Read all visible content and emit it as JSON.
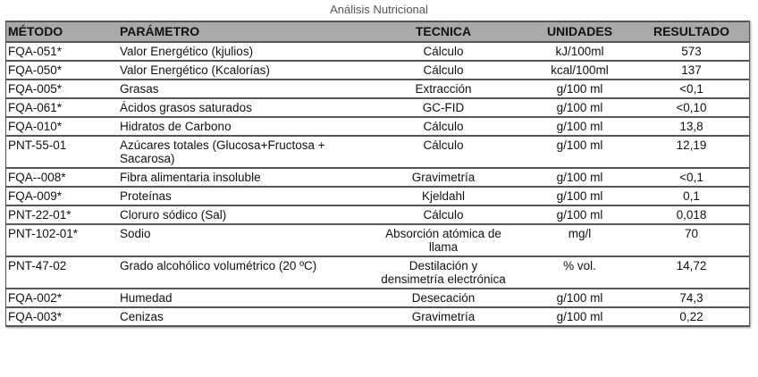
{
  "title": "Análisis Nutricional",
  "headers": [
    "MÉTODO",
    "PARÁMETRO",
    "TECNICA",
    "UNIDADES",
    "RESULTADO"
  ],
  "rows": [
    {
      "metodo": "FQA-051*",
      "parametro": "Valor Energético (kjulios)",
      "tecnica": "Cálculo",
      "unidades": "kJ/100ml",
      "resultado": "573"
    },
    {
      "metodo": "FQA-050*",
      "parametro": "Valor Energético (Kcalorías)",
      "tecnica": "Cálculo",
      "unidades": "kcal/100ml",
      "resultado": "137"
    },
    {
      "metodo": "FQA-005*",
      "parametro": "Grasas",
      "tecnica": "Extracción",
      "unidades": "g/100 ml",
      "resultado": "<0,1"
    },
    {
      "metodo": "FQA-061*",
      "parametro": "Ácidos grasos saturados",
      "tecnica": "GC-FID",
      "unidades": "g/100 ml",
      "resultado": "<0,10"
    },
    {
      "metodo": "FQA-010*",
      "parametro": "Hidratos de Carbono",
      "tecnica": "Cálculo",
      "unidades": "g/100 ml",
      "resultado": "13,8"
    },
    {
      "metodo": "PNT-55-01",
      "parametro": "Azúcares totales (Glucosa+Fructosa + Sacarosa)",
      "tecnica": "Cálculo",
      "unidades": "g/100 ml",
      "resultado": "12,19"
    },
    {
      "metodo": "FQA--008*",
      "parametro": "Fibra alimentaria insoluble",
      "tecnica": "Gravimetría",
      "unidades": "g/100 ml",
      "resultado": "<0,1"
    },
    {
      "metodo": "FQA-009*",
      "parametro": "Proteínas",
      "tecnica": "Kjeldahl",
      "unidades": "g/100 ml",
      "resultado": "0,1"
    },
    {
      "metodo": "PNT-22-01*",
      "parametro": "Cloruro sódico (Sal)",
      "tecnica": "Cálculo",
      "unidades": "g/100 ml",
      "resultado": "0,018"
    },
    {
      "metodo": "PNT-102-01*",
      "parametro": "Sodio",
      "tecnica": "Absorción atómica de llama",
      "unidades": "mg/l",
      "resultado": "70"
    },
    {
      "metodo": "PNT-47-02",
      "parametro": "Grado alcohólico volumétrico (20 ºC)",
      "tecnica": "Destilación y densimetría electrónica",
      "unidades": "% vol.",
      "resultado": "14,72"
    },
    {
      "metodo": "FQA-002*",
      "parametro": "Humedad",
      "tecnica": "Desecación",
      "unidades": "g/100 ml",
      "resultado": "74,3"
    },
    {
      "metodo": "FQA-003*",
      "parametro": "Cenizas",
      "tecnica": "Gravimetría",
      "unidades": "g/100 ml",
      "resultado": "0,22"
    }
  ]
}
